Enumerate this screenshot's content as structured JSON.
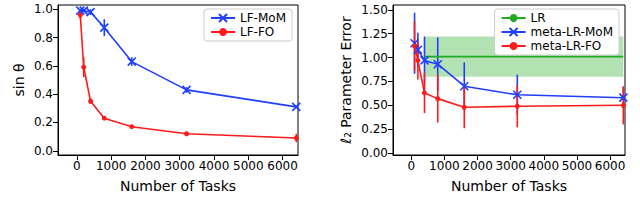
{
  "chart_data": [
    {
      "type": "line",
      "x_label": "Number of Tasks",
      "y_label": "sin θ",
      "x": [
        100,
        200,
        400,
        800,
        1600,
        3200,
        6400
      ],
      "series": [
        {
          "name": "LF-MoM",
          "color": "#1f3fff",
          "marker": "x",
          "values": [
            0.99,
            0.99,
            0.98,
            0.87,
            0.63,
            0.43,
            0.31
          ],
          "errors": [
            0.01,
            0.01,
            0.02,
            0.06,
            0.03,
            0.02,
            0.01
          ]
        },
        {
          "name": "LF-FO",
          "color": "#ff1a1a",
          "marker": "circle",
          "values": [
            0.96,
            0.59,
            0.35,
            0.23,
            0.17,
            0.12,
            0.09
          ],
          "errors": [
            0.03,
            0.07,
            0.02,
            0.01,
            0.01,
            0.01,
            0.03
          ]
        }
      ],
      "xlim": [
        -550,
        6450
      ],
      "xticks": [
        0,
        1000,
        2000,
        3000,
        4000,
        5000,
        6000
      ],
      "ylim": [
        -0.03,
        1.03
      ],
      "yticks": [
        {
          "value": 0,
          "label": "0.0"
        },
        {
          "value": 0.2,
          "label": "0.2"
        },
        {
          "value": 0.4,
          "label": "0.4"
        },
        {
          "value": 0.6,
          "label": "0.6"
        },
        {
          "value": 0.8,
          "label": "0.8"
        },
        {
          "value": 1,
          "label": "1.0"
        }
      ],
      "legend": "upper right",
      "grid": false
    },
    {
      "type": "line",
      "x_label": "Number of Tasks",
      "y_label": "ℓ₂ Parameter Error",
      "x": [
        100,
        200,
        400,
        800,
        1600,
        3200,
        6400
      ],
      "series": [
        {
          "name": "LR",
          "color": "#22aa22",
          "marker": "none",
          "x": [
            400,
            6400
          ],
          "values": [
            1.01,
            1.01
          ],
          "band_lower": [
            0.8,
            0.8
          ],
          "band_upper": [
            1.22,
            1.22
          ]
        },
        {
          "name": "meta-LR-MoM",
          "color": "#1f3fff",
          "marker": "x",
          "values": [
            1.15,
            1.08,
            0.97,
            0.93,
            0.7,
            0.61,
            0.58
          ],
          "errors": [
            0.32,
            0.18,
            0.25,
            0.28,
            0.25,
            0.21,
            0.11
          ]
        },
        {
          "name": "meta-LR-FO",
          "color": "#ff1a1a",
          "marker": "circle",
          "values": [
            1.12,
            0.97,
            0.63,
            0.57,
            0.48,
            0.49,
            0.5
          ],
          "errors": [
            0.26,
            0.2,
            0.21,
            0.25,
            0.22,
            0.22,
            0.2
          ]
        }
      ],
      "xlim": [
        -550,
        6450
      ],
      "xticks": [
        0,
        1000,
        2000,
        3000,
        4000,
        5000,
        6000
      ],
      "ylim": [
        -0.02,
        1.55
      ],
      "yticks": [
        {
          "value": 0,
          "label": "0.00"
        },
        {
          "value": 0.25,
          "label": "0.25"
        },
        {
          "value": 0.5,
          "label": "0.50"
        },
        {
          "value": 0.75,
          "label": "0.75"
        },
        {
          "value": 1,
          "label": "1.00"
        },
        {
          "value": 1.25,
          "label": "1.25"
        },
        {
          "value": 1.5,
          "label": "1.50"
        }
      ],
      "legend": "upper right",
      "grid": false
    }
  ]
}
